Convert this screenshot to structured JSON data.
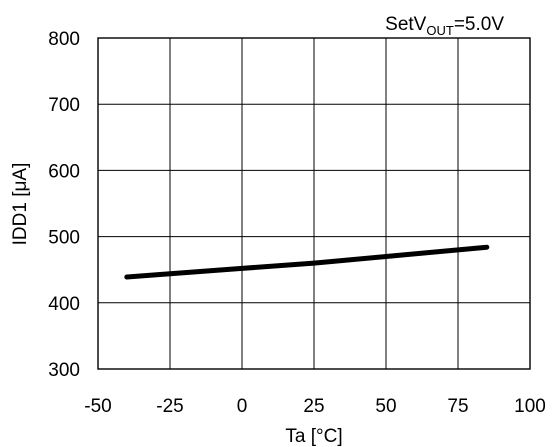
{
  "chart_data": {
    "type": "line",
    "title": "",
    "xlabel": "Ta [°C]",
    "ylabel": "IDD1 [μA]",
    "xlim": [
      -50,
      100
    ],
    "ylim": [
      300,
      800
    ],
    "xticks": [
      -50,
      -25,
      0,
      25,
      50,
      75,
      100
    ],
    "yticks": [
      300,
      400,
      500,
      600,
      700,
      800
    ],
    "grid": true,
    "annotation": {
      "prefix": "SetV",
      "subscript": "OUT",
      "suffix": "=5.0V"
    },
    "series": [
      {
        "x": [
          -40,
          -25,
          0,
          25,
          50,
          85
        ],
        "y": [
          439,
          444,
          452,
          460,
          470,
          484
        ]
      }
    ],
    "line_color": "#000000"
  }
}
